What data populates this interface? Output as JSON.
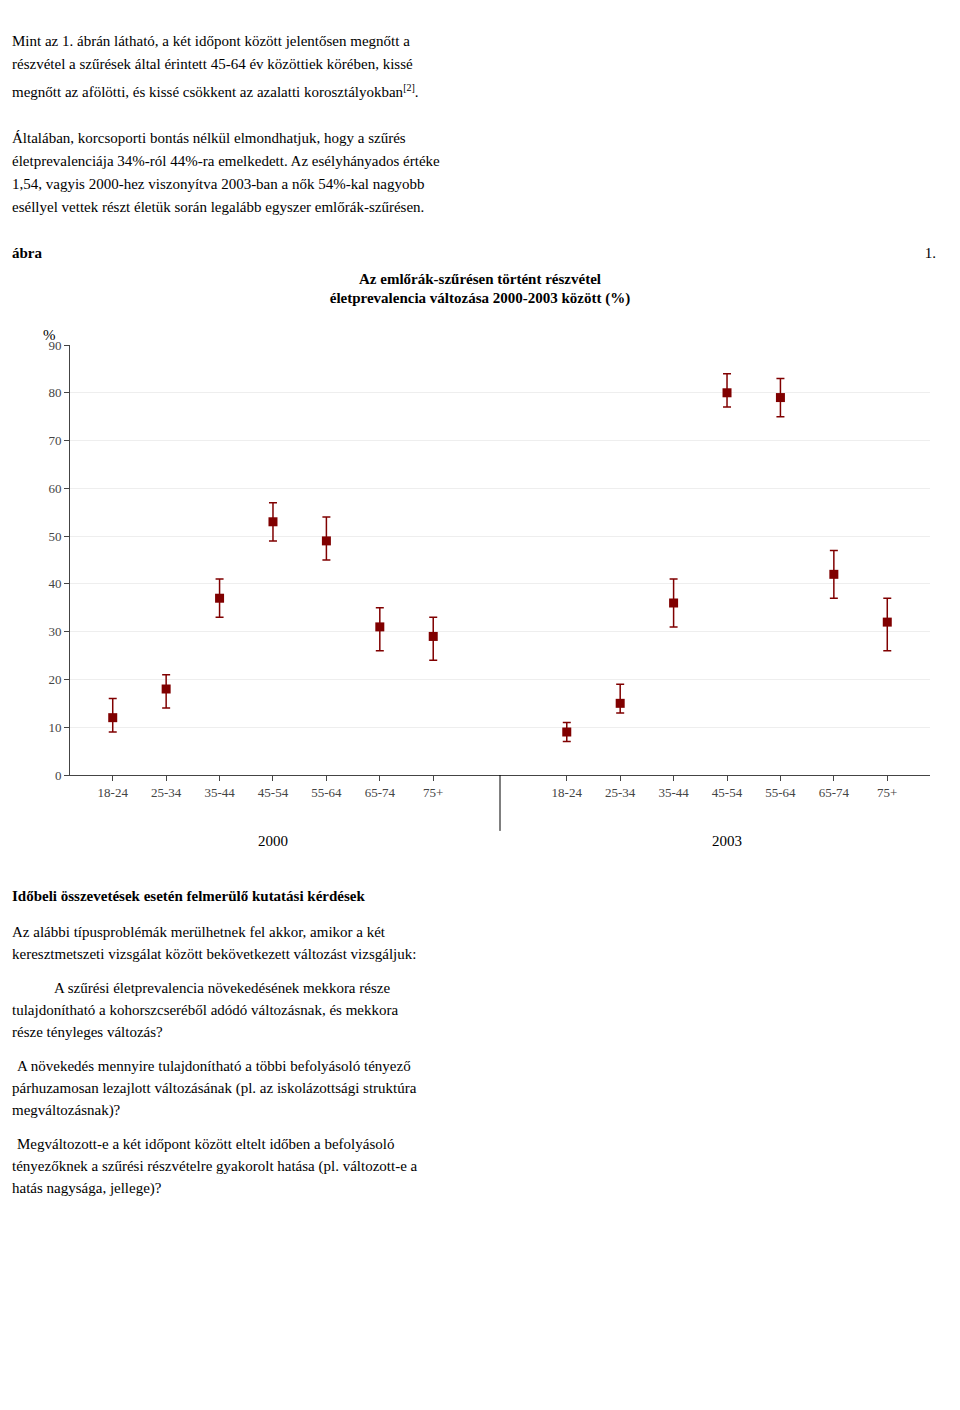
{
  "chart_data": {
    "type": "scatter",
    "title": "Az emlőrák-szűrésen történt részvétel",
    "subtitle": "életprevalencia változása 2000-2003 között (%)",
    "ylabel": "%",
    "categories": [
      "18-24",
      "25-34",
      "35-44",
      "45-54",
      "55-64",
      "65-74",
      "75+",
      "18-24",
      "25-34",
      "35-44",
      "45-54",
      "55-64",
      "65-74",
      "75+"
    ],
    "group_labels": [
      "2000",
      "2003"
    ],
    "values": [
      12,
      18,
      37,
      53,
      49,
      31,
      29,
      9,
      15,
      36,
      80,
      79,
      42,
      32
    ],
    "err_low": [
      3,
      4,
      4,
      4,
      4,
      5,
      5,
      2,
      2,
      5,
      3,
      4,
      5,
      6
    ],
    "err_high": [
      4,
      3,
      4,
      4,
      5,
      4,
      4,
      2,
      4,
      5,
      4,
      4,
      5,
      5
    ],
    "color": "#800000",
    "marker": "square",
    "ylim": [
      0,
      90
    ],
    "yticks": [
      0,
      10,
      20,
      30,
      40,
      50,
      60,
      70,
      80,
      90
    ],
    "grid": true
  },
  "page_text": {
    "before": [
      [
        "Mint az 1. ábrán látható, a két időpont között jelentősen megnőtt a",
        "részvétel a szűrések által érintett 45-64 év közöttiek körében, kissé",
        {
          "text": "megnőtt az afölötti, és kissé csökkent az azalatti korosztályokban",
          "sup": "[2]",
          "after": "."
        }
      ],
      [
        "Általában, korcsoporti bontás nélkül elmondhatjuk, hogy a szűrés",
        "életprevalenciája 34%-ról 44%-ra emelkedett. Az esélyhányados értéke",
        "1,54, vagyis 2000-hez viszonyítva 2003-ban a nők 54%-kal nagyobb",
        "eséllyel vettek részt életük során legalább egyszer emlőrák-szűrésen."
      ]
    ],
    "figure_number": "1.",
    "figure_word": "ábra",
    "heading": "Időbeli összevetések esetén felmerülő kutatási kérdések",
    "after": [
      [
        "Az alábbi típusproblémák merülhetnek fel akkor, amikor a két",
        "keresztmetszeti vizsgálat között bekövetkezett változást vizsgáljuk:"
      ],
      [
        "A szűrési életprevalencia növekedésének mekkora része",
        "tulajdonítható a kohorszcseréből adódó változásnak, és mekkora",
        "része tényleges változás?"
      ],
      [
        "A növekedés mennyire tulajdonítható a többi befolyásoló tényező",
        "párhuzamosan lezajlott változásának (pl. az iskolázottsági struktúra",
        "megváltozásnak)?"
      ],
      [
        "Megváltozott-e a két időpont között eltelt időben a befolyásoló",
        "tényezőknek a szűrési részvételre gyakorolt hatása (pl. változott-e a",
        "hatás nagysága, jellege)?"
      ]
    ]
  }
}
